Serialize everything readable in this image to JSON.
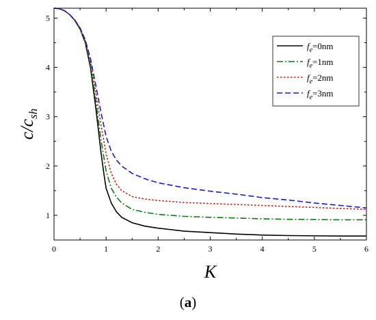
{
  "chart_data": {
    "type": "line",
    "xlabel": "K",
    "ylabel": {
      "main": "c/c",
      "sub": "sh"
    },
    "xlim": [
      0,
      6
    ],
    "ylim": [
      0.5,
      5.2
    ],
    "xticks": [
      0,
      1,
      2,
      3,
      4,
      5,
      6
    ],
    "yticks": [
      1,
      2,
      3,
      4,
      5
    ],
    "grid": false,
    "legend_position": "top-right",
    "series": [
      {
        "name": "f_e=0nm",
        "legend_var": "f",
        "legend_sub": "e",
        "legend_rest": "=0nm",
        "color": "#000000",
        "dash": "solid",
        "points": [
          [
            0,
            5.2
          ],
          [
            0.1,
            5.19
          ],
          [
            0.2,
            5.15
          ],
          [
            0.3,
            5.07
          ],
          [
            0.4,
            4.95
          ],
          [
            0.5,
            4.78
          ],
          [
            0.6,
            4.5
          ],
          [
            0.7,
            4.0
          ],
          [
            0.8,
            3.2
          ],
          [
            0.85,
            2.75
          ],
          [
            0.9,
            2.3
          ],
          [
            0.95,
            1.9
          ],
          [
            1.0,
            1.55
          ],
          [
            1.1,
            1.25
          ],
          [
            1.2,
            1.07
          ],
          [
            1.3,
            0.96
          ],
          [
            1.5,
            0.85
          ],
          [
            1.75,
            0.78
          ],
          [
            2.0,
            0.74
          ],
          [
            2.5,
            0.68
          ],
          [
            3.0,
            0.65
          ],
          [
            3.5,
            0.62
          ],
          [
            4.0,
            0.6
          ],
          [
            4.5,
            0.59
          ],
          [
            5.0,
            0.585
          ],
          [
            5.5,
            0.58
          ],
          [
            6.0,
            0.58
          ]
        ]
      },
      {
        "name": "f_e=1nm",
        "legend_var": "f",
        "legend_sub": "e",
        "legend_rest": "=1nm",
        "color": "#0c7a0c",
        "dash": "dashdot",
        "points": [
          [
            0,
            5.2
          ],
          [
            0.1,
            5.19
          ],
          [
            0.2,
            5.15
          ],
          [
            0.3,
            5.07
          ],
          [
            0.4,
            4.95
          ],
          [
            0.5,
            4.78
          ],
          [
            0.6,
            4.52
          ],
          [
            0.7,
            4.05
          ],
          [
            0.8,
            3.35
          ],
          [
            0.9,
            2.55
          ],
          [
            1.0,
            1.9
          ],
          [
            1.1,
            1.55
          ],
          [
            1.2,
            1.37
          ],
          [
            1.3,
            1.25
          ],
          [
            1.5,
            1.12
          ],
          [
            1.75,
            1.06
          ],
          [
            2.0,
            1.02
          ],
          [
            2.5,
            0.98
          ],
          [
            3.0,
            0.96
          ],
          [
            3.5,
            0.945
          ],
          [
            4.0,
            0.93
          ],
          [
            4.5,
            0.92
          ],
          [
            5.0,
            0.915
          ],
          [
            5.5,
            0.91
          ],
          [
            6.0,
            0.91
          ]
        ]
      },
      {
        "name": "f_e=2nm",
        "legend_var": "f",
        "legend_sub": "e",
        "legend_rest": "=2nm",
        "color": "#cc1a1a",
        "dash": "dot",
        "points": [
          [
            0,
            5.2
          ],
          [
            0.1,
            5.19
          ],
          [
            0.2,
            5.15
          ],
          [
            0.3,
            5.07
          ],
          [
            0.4,
            4.96
          ],
          [
            0.5,
            4.8
          ],
          [
            0.6,
            4.55
          ],
          [
            0.7,
            4.12
          ],
          [
            0.8,
            3.5
          ],
          [
            0.9,
            2.85
          ],
          [
            1.0,
            2.25
          ],
          [
            1.1,
            1.85
          ],
          [
            1.2,
            1.63
          ],
          [
            1.3,
            1.5
          ],
          [
            1.5,
            1.38
          ],
          [
            1.75,
            1.33
          ],
          [
            2.0,
            1.3
          ],
          [
            2.5,
            1.26
          ],
          [
            3.0,
            1.24
          ],
          [
            3.5,
            1.22
          ],
          [
            4.0,
            1.2
          ],
          [
            4.5,
            1.18
          ],
          [
            5.0,
            1.16
          ],
          [
            5.5,
            1.14
          ],
          [
            6.0,
            1.12
          ]
        ]
      },
      {
        "name": "f_e=3nm",
        "legend_var": "f",
        "legend_sub": "e",
        "legend_rest": "=3nm",
        "color": "#1a1acc",
        "dash": "dashed",
        "points": [
          [
            0,
            5.2
          ],
          [
            0.1,
            5.19
          ],
          [
            0.2,
            5.15
          ],
          [
            0.3,
            5.07
          ],
          [
            0.4,
            4.96
          ],
          [
            0.5,
            4.8
          ],
          [
            0.6,
            4.56
          ],
          [
            0.7,
            4.18
          ],
          [
            0.8,
            3.65
          ],
          [
            0.9,
            3.1
          ],
          [
            1.0,
            2.6
          ],
          [
            1.1,
            2.3
          ],
          [
            1.2,
            2.12
          ],
          [
            1.3,
            2.0
          ],
          [
            1.5,
            1.85
          ],
          [
            1.75,
            1.74
          ],
          [
            2.0,
            1.66
          ],
          [
            2.5,
            1.56
          ],
          [
            3.0,
            1.49
          ],
          [
            3.5,
            1.43
          ],
          [
            4.0,
            1.36
          ],
          [
            4.5,
            1.31
          ],
          [
            5.0,
            1.25
          ],
          [
            5.5,
            1.2
          ],
          [
            6.0,
            1.15
          ]
        ]
      }
    ]
  },
  "caption": {
    "open": "(",
    "letter": "a",
    "close": ")"
  }
}
